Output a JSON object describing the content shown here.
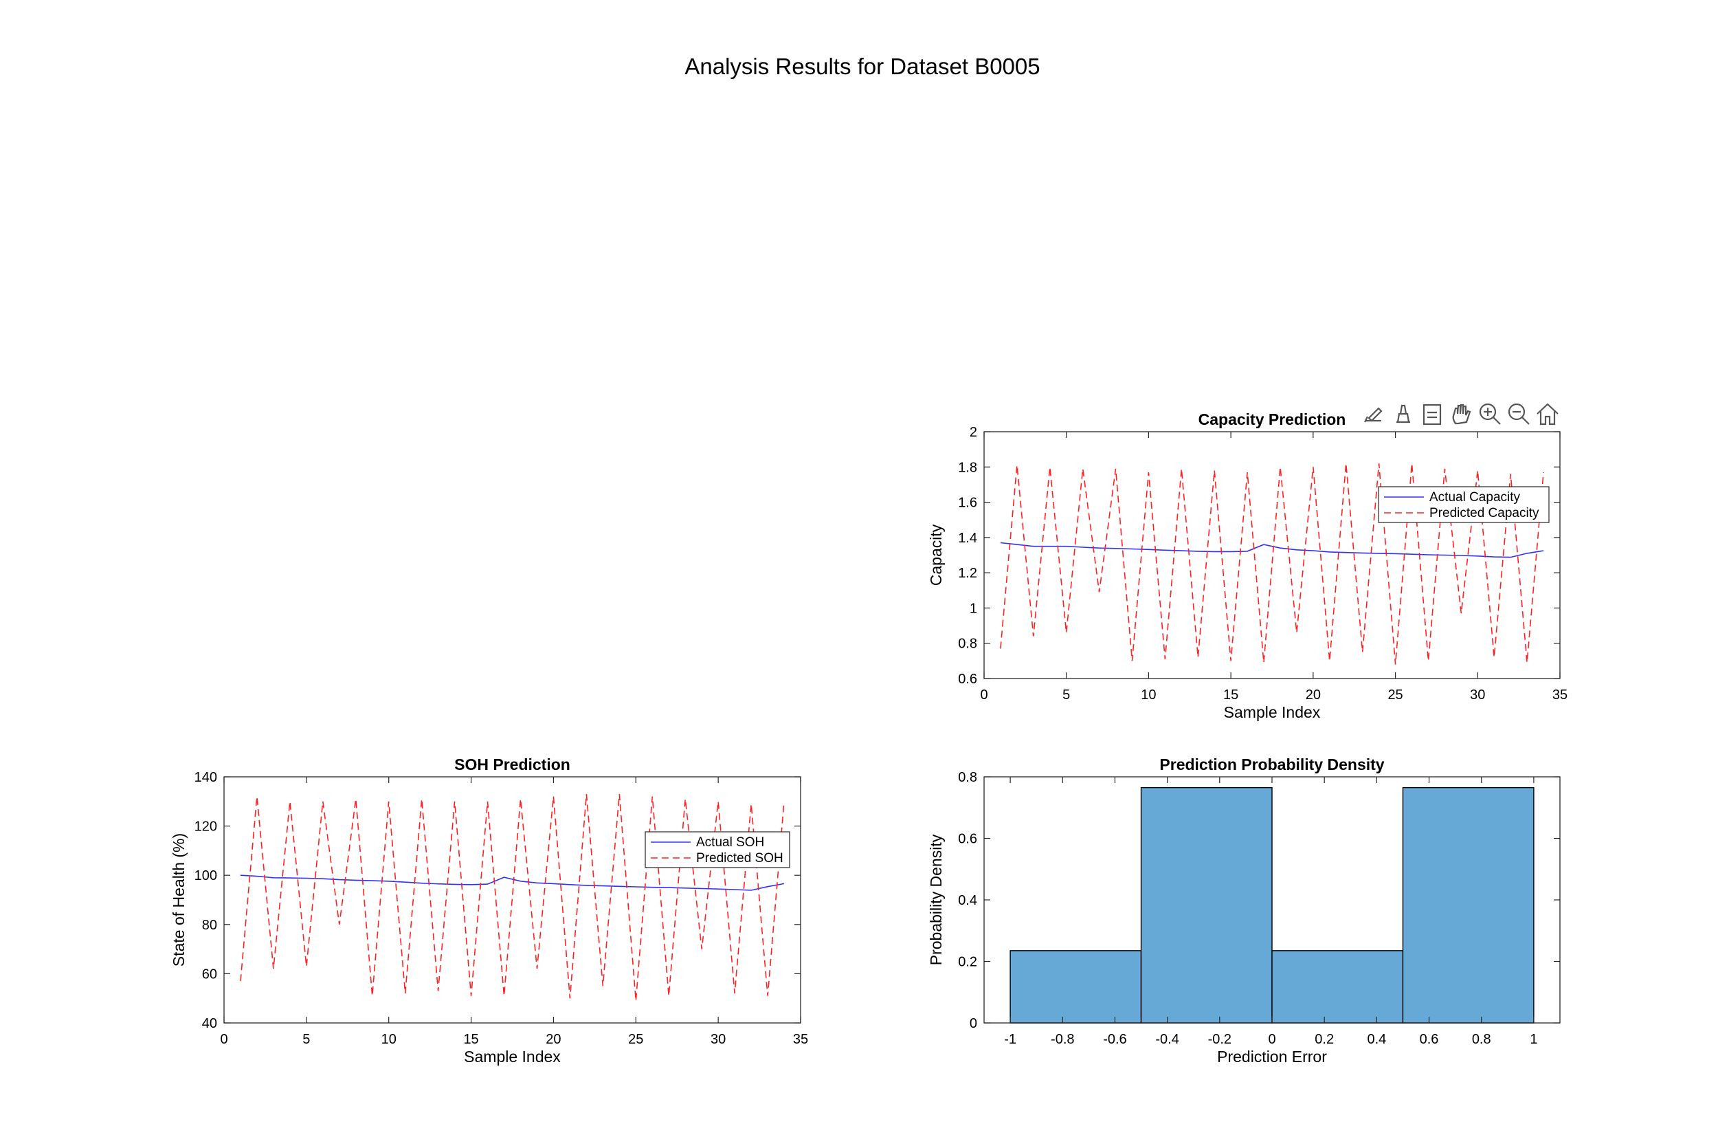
{
  "figure": {
    "suptitle": "Analysis Results for Dataset B0005"
  },
  "toolbar": {
    "icons": [
      "brush-icon",
      "data-tips-icon",
      "legend-toggle-icon",
      "pan-icon",
      "zoom-in-icon",
      "zoom-out-icon",
      "home-icon"
    ]
  },
  "colors": {
    "actual": "#3030ff",
    "predicted": "#ff2020",
    "histogram_fill": "#66a9d7"
  },
  "chart_data": [
    {
      "id": "capacity",
      "type": "line",
      "title": "Capacity Prediction",
      "xlabel": "Sample Index",
      "ylabel": "Capacity",
      "xlim": [
        0,
        35
      ],
      "ylim": [
        0.6,
        2
      ],
      "xticks": [
        "0",
        "5",
        "10",
        "15",
        "20",
        "25",
        "30",
        "35"
      ],
      "yticks": [
        "0.6",
        "0.8",
        "1",
        "1.2",
        "1.4",
        "1.6",
        "1.8",
        "2"
      ],
      "legend": "top-right",
      "x": [
        1,
        2,
        3,
        4,
        5,
        6,
        7,
        8,
        9,
        10,
        11,
        12,
        13,
        14,
        15,
        16,
        17,
        18,
        19,
        20,
        21,
        22,
        23,
        24,
        25,
        26,
        27,
        28,
        29,
        30,
        31,
        32,
        33,
        34
      ],
      "series": [
        {
          "name": "Actual Capacity",
          "style": "solid",
          "values": [
            1.37,
            1.36,
            1.35,
            1.35,
            1.35,
            1.345,
            1.34,
            1.338,
            1.335,
            1.332,
            1.328,
            1.325,
            1.322,
            1.32,
            1.32,
            1.322,
            1.36,
            1.34,
            1.33,
            1.325,
            1.318,
            1.315,
            1.312,
            1.31,
            1.308,
            1.305,
            1.302,
            1.3,
            1.298,
            1.295,
            1.29,
            1.288,
            1.31,
            1.325
          ]
        },
        {
          "name": "Predicted Capacity",
          "style": "dashed",
          "values": [
            0.77,
            1.81,
            0.84,
            1.8,
            0.86,
            1.79,
            1.09,
            1.79,
            0.7,
            1.77,
            0.71,
            1.79,
            0.72,
            1.78,
            0.7,
            1.77,
            0.69,
            1.8,
            0.86,
            1.8,
            0.7,
            1.82,
            0.75,
            1.82,
            0.68,
            1.82,
            0.7,
            1.79,
            0.97,
            1.78,
            0.72,
            1.76,
            0.69,
            1.77
          ]
        }
      ]
    },
    {
      "id": "soh",
      "type": "line",
      "title": "SOH Prediction",
      "xlabel": "Sample Index",
      "ylabel": "State of Health (%)",
      "xlim": [
        0,
        35
      ],
      "ylim": [
        40,
        140
      ],
      "xticks": [
        "0",
        "5",
        "10",
        "15",
        "20",
        "25",
        "30",
        "35"
      ],
      "yticks": [
        "40",
        "60",
        "80",
        "100",
        "120",
        "140"
      ],
      "legend": "top-right",
      "x": [
        1,
        2,
        3,
        4,
        5,
        6,
        7,
        8,
        9,
        10,
        11,
        12,
        13,
        14,
        15,
        16,
        17,
        18,
        19,
        20,
        21,
        22,
        23,
        24,
        25,
        26,
        27,
        28,
        29,
        30,
        31,
        32,
        33,
        34
      ],
      "series": [
        {
          "name": "Actual SOH",
          "style": "solid",
          "values": [
            100,
            99.6,
            99,
            98.9,
            98.8,
            98.6,
            98.2,
            98,
            97.8,
            97.6,
            97.2,
            96.8,
            96.5,
            96.3,
            96.2,
            96.4,
            99.2,
            97.6,
            96.9,
            96.6,
            96.2,
            95.9,
            95.7,
            95.5,
            95.3,
            95.1,
            95,
            94.8,
            94.6,
            94.4,
            94.2,
            93.9,
            95.4,
            96.6
          ]
        },
        {
          "name": "Predicted SOH",
          "style": "dashed",
          "values": [
            57,
            132,
            62,
            130,
            63,
            130,
            80,
            131,
            51,
            130,
            52,
            131,
            53,
            130,
            51,
            130,
            51,
            131,
            62,
            132,
            50,
            133,
            55,
            133,
            49,
            132,
            51,
            131,
            70,
            130,
            52,
            129,
            51,
            130
          ]
        }
      ]
    },
    {
      "id": "density",
      "type": "bar",
      "title": "Prediction Probability Density",
      "xlabel": "Prediction Error",
      "ylabel": "Probability Density",
      "xlim": [
        -1.1,
        1.1
      ],
      "ylim": [
        0,
        0.8
      ],
      "xticks": [
        "-1",
        "-0.8",
        "-0.6",
        "-0.4",
        "-0.2",
        "0",
        "0.2",
        "0.4",
        "0.6",
        "0.8",
        "1"
      ],
      "yticks": [
        "0",
        "0.2",
        "0.4",
        "0.6",
        "0.8"
      ],
      "bin_edges": [
        -1,
        -0.5,
        0,
        0.5,
        1
      ],
      "values": [
        0.235,
        0.765,
        0.235,
        0.765
      ]
    }
  ]
}
